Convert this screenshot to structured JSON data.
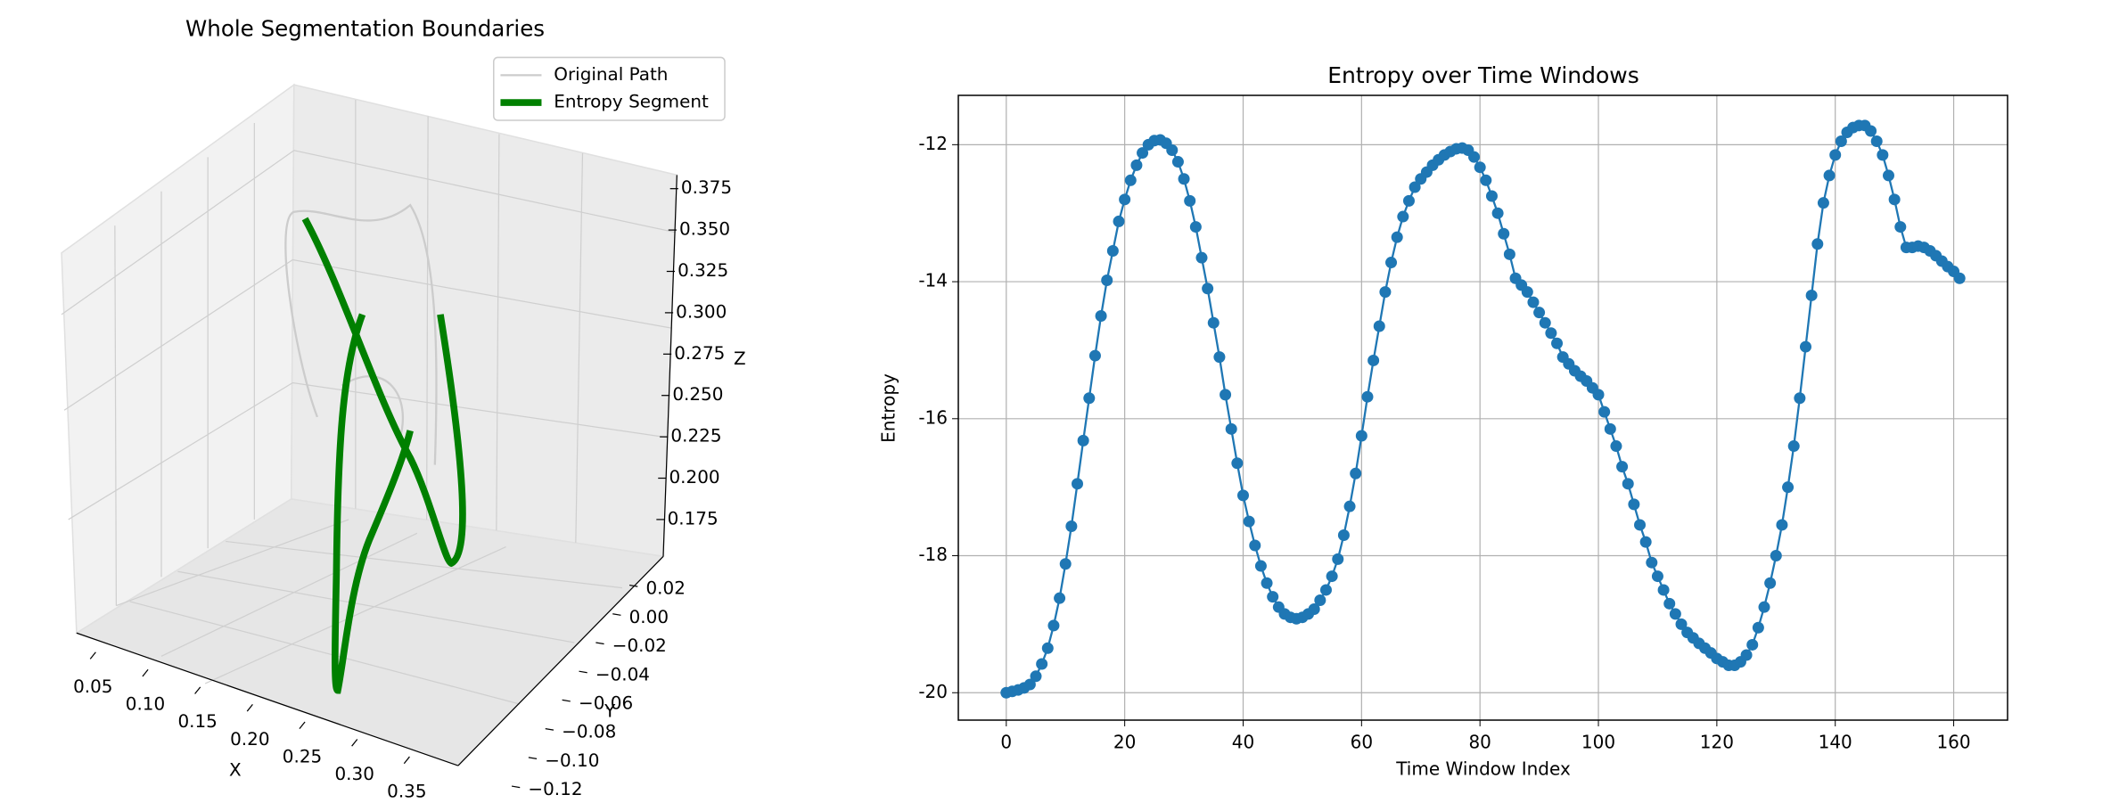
{
  "chart_data": [
    {
      "type": "line3d",
      "title": "Whole Segmentation Boundaries",
      "xlabel": "X",
      "ylabel": "Y",
      "zlabel": "Z",
      "xticks": [
        0.05,
        {
          "value": 0.1,
          "label": "0.10"
        },
        0.15,
        {
          "value": 0.2,
          "label": "0.20"
        },
        0.25,
        {
          "value": 0.3,
          "label": "0.30"
        },
        0.35
      ],
      "yticks": [
        0.02,
        {
          "value": 0,
          "label": "0.00"
        },
        {
          "value": -0.02,
          "label": "−0.02"
        },
        {
          "value": -0.04,
          "label": "−0.04"
        },
        {
          "value": -0.06,
          "label": "−0.06"
        },
        {
          "value": -0.08,
          "label": "−0.08"
        },
        {
          "value": -0.1,
          "label": "−0.10"
        },
        {
          "value": -0.12,
          "label": "−0.12"
        }
      ],
      "zticks": [
        0.375,
        {
          "value": 0.35,
          "label": "0.350"
        },
        0.325,
        {
          "value": 0.3,
          "label": "0.300"
        },
        0.275,
        {
          "value": 0.25,
          "label": "0.250"
        },
        0.225,
        {
          "value": 0.2,
          "label": "0.200"
        },
        0.175
      ],
      "series": [
        {
          "name": "Original Path",
          "color": "#cccccc"
        },
        {
          "name": "Entropy Segment",
          "color": "#008000"
        }
      ]
    },
    {
      "type": "line",
      "title": "Entropy over Time Windows",
      "xlabel": "Time Window Index",
      "ylabel": "Entropy",
      "x": [
        0,
        1,
        2,
        3,
        4,
        5,
        6,
        7,
        8,
        9,
        10,
        11,
        12,
        13,
        14,
        15,
        16,
        17,
        18,
        19,
        20,
        21,
        22,
        23,
        24,
        25,
        26,
        27,
        28,
        29,
        30,
        31,
        32,
        33,
        34,
        35,
        36,
        37,
        38,
        39,
        40,
        41,
        42,
        43,
        44,
        45,
        46,
        47,
        48,
        49,
        50,
        51,
        52,
        53,
        54,
        55,
        56,
        57,
        58,
        59,
        60,
        61,
        62,
        63,
        64,
        65,
        66,
        67,
        68,
        69,
        70,
        71,
        72,
        73,
        74,
        75,
        76,
        77,
        78,
        79,
        80,
        81,
        82,
        83,
        84,
        85,
        86,
        87,
        88,
        89,
        90,
        91,
        92,
        93,
        94,
        95,
        96,
        97,
        98,
        99,
        100,
        101,
        102,
        103,
        104,
        105,
        106,
        107,
        108,
        109,
        110,
        111,
        112,
        113,
        114,
        115,
        116,
        117,
        118,
        119,
        120,
        121,
        122,
        123,
        124,
        125,
        126,
        127,
        128,
        129,
        130,
        131,
        132,
        133,
        134,
        135,
        136,
        137,
        138,
        139,
        140,
        141,
        142,
        143,
        144,
        145,
        146,
        147,
        148,
        149,
        150,
        151,
        152,
        153,
        154,
        155,
        156,
        157,
        158,
        159,
        160,
        161
      ],
      "series": [
        {
          "color": "#1f77b4",
          "values": [
            -20.0,
            -19.98,
            -19.96,
            -19.93,
            -19.88,
            -19.76,
            -19.58,
            -19.35,
            -19.02,
            -18.62,
            -18.12,
            -17.57,
            -16.95,
            -16.32,
            -15.7,
            -15.08,
            -14.5,
            -13.98,
            -13.55,
            -13.12,
            -12.8,
            -12.52,
            -12.3,
            -12.12,
            -12.0,
            -11.94,
            -11.93,
            -11.98,
            -12.08,
            -12.25,
            -12.5,
            -12.82,
            -13.2,
            -13.65,
            -14.1,
            -14.6,
            -15.1,
            -15.65,
            -16.15,
            -16.65,
            -17.12,
            -17.5,
            -17.85,
            -18.15,
            -18.4,
            -18.6,
            -18.75,
            -18.85,
            -18.9,
            -18.92,
            -18.9,
            -18.85,
            -18.78,
            -18.65,
            -18.5,
            -18.3,
            -18.05,
            -17.7,
            -17.28,
            -16.8,
            -16.25,
            -15.68,
            -15.15,
            -14.65,
            -14.15,
            -13.72,
            -13.35,
            -13.05,
            -12.82,
            -12.62,
            -12.5,
            -12.4,
            -12.3,
            -12.22,
            -12.15,
            -12.1,
            -12.06,
            -12.05,
            -12.08,
            -12.18,
            -12.33,
            -12.52,
            -12.75,
            -13.0,
            -13.3,
            -13.6,
            -13.95,
            -14.05,
            -14.15,
            -14.3,
            -14.45,
            -14.6,
            -14.75,
            -14.9,
            -15.1,
            -15.2,
            -15.3,
            -15.38,
            -15.45,
            -15.55,
            -15.65,
            -15.9,
            -16.15,
            -16.4,
            -16.7,
            -16.95,
            -17.25,
            -17.55,
            -17.8,
            -18.1,
            -18.3,
            -18.5,
            -18.7,
            -18.85,
            -19.0,
            -19.12,
            -19.2,
            -19.28,
            -19.35,
            -19.42,
            -19.5,
            -19.55,
            -19.6,
            -19.6,
            -19.55,
            -19.45,
            -19.3,
            -19.05,
            -18.75,
            -18.4,
            -18.0,
            -17.55,
            -17.0,
            -16.4,
            -15.7,
            -14.95,
            -14.2,
            -13.45,
            -12.85,
            -12.45,
            -12.15,
            -11.95,
            -11.82,
            -11.75,
            -11.72,
            -11.72,
            -11.8,
            -11.95,
            -12.15,
            -12.45,
            -12.8,
            -13.2,
            -13.5,
            -13.5,
            -13.48,
            -13.5,
            -13.55,
            -13.62,
            -13.7,
            -13.78,
            -13.85,
            -13.95
          ]
        }
      ],
      "xlim": [
        -8.1,
        169.1
      ],
      "ylim": [
        -20.4,
        -11.28
      ],
      "xticks": [
        0,
        20,
        40,
        60,
        80,
        100,
        120,
        140,
        160
      ],
      "yticks": [
        -20,
        -18,
        -16,
        -14,
        -12
      ],
      "grid": true
    }
  ]
}
